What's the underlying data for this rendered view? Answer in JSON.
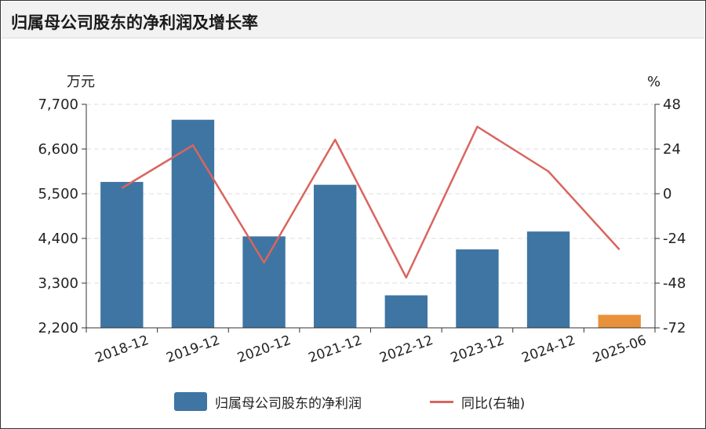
{
  "title": "归属母公司股东的净利润及增长率",
  "legend": {
    "bar_label": "归属母公司股东的净利润",
    "line_label": "同比(右轴)"
  },
  "colors": {
    "bar": "#3e75a3",
    "bar_highlight": "#e8913a",
    "line": "#d9655f",
    "grid": "#dddddd",
    "axis": "#333333"
  },
  "chart_data": {
    "type": "bar",
    "categories": [
      "2018-12",
      "2019-12",
      "2020-12",
      "2021-12",
      "2022-12",
      "2023-12",
      "2024-12",
      "2025-06"
    ],
    "series": [
      {
        "name": "归属母公司股东的净利润",
        "type": "bar",
        "axis": "left",
        "values": [
          5790,
          7320,
          4450,
          5720,
          3000,
          4130,
          4570,
          2520
        ],
        "highlight_index": 7
      },
      {
        "name": "同比(右轴)",
        "type": "line",
        "axis": "right",
        "values": [
          3,
          26,
          -37,
          29,
          -45,
          36,
          12,
          -30
        ]
      }
    ],
    "left_axis": {
      "unit": "万元",
      "ylim": [
        2200,
        7700
      ],
      "ticks": [
        2200,
        3300,
        4400,
        5500,
        6600,
        7700
      ],
      "tick_labels": [
        "2,200",
        "3,300",
        "4,400",
        "5,500",
        "6,600",
        "7,700"
      ]
    },
    "right_axis": {
      "unit": "%",
      "ylim": [
        -72,
        48
      ],
      "ticks": [
        -72,
        -48,
        -24,
        0,
        24,
        48
      ],
      "tick_labels": [
        "-72",
        "-48",
        "-24",
        "0",
        "24",
        "48"
      ]
    },
    "grid": true,
    "legend_position": "bottom"
  }
}
